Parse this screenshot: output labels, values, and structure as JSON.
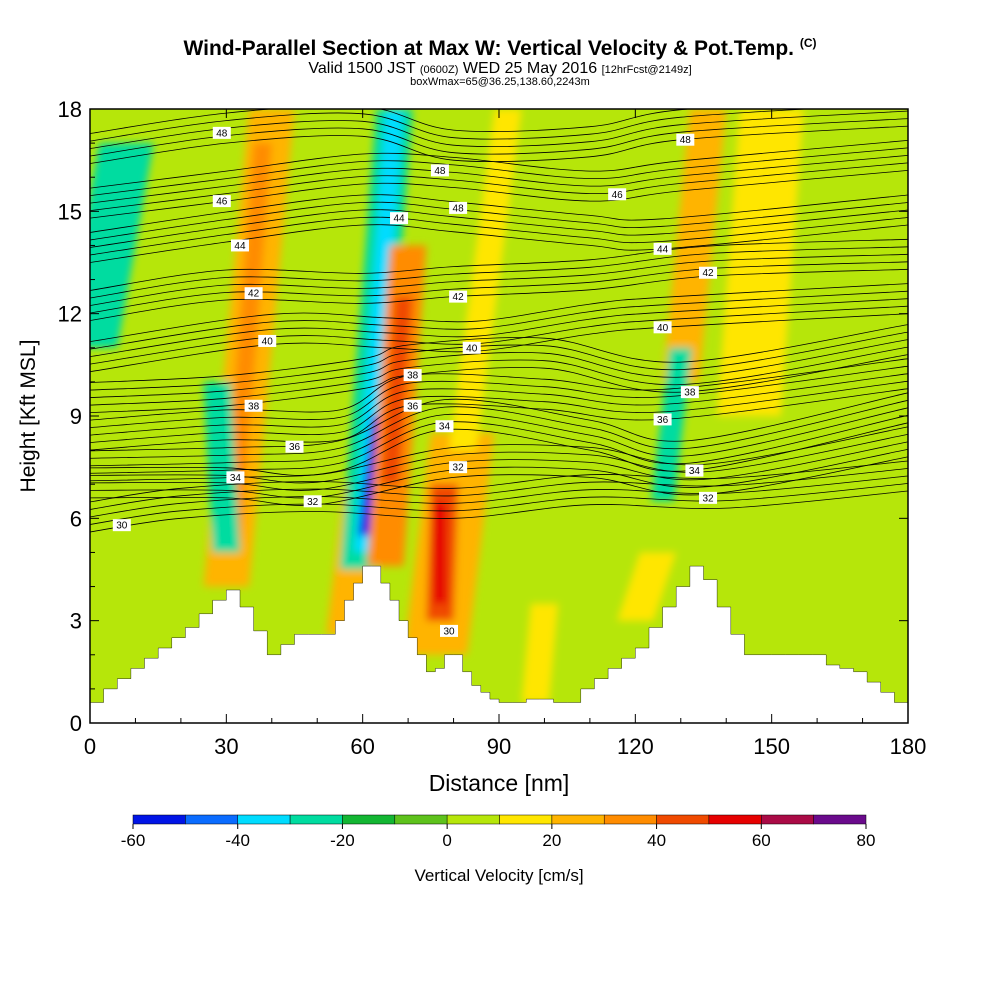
{
  "title": {
    "main": "Wind-Parallel Section at Max W: Vertical Velocity & Pot.Temp.",
    "copyright": "(C)",
    "valid_pre": "Valid 1500 JST",
    "valid_utc": "(0600Z)",
    "valid_date": "WED 25 May 2016",
    "forecast": "[12hrFcst@2149z]",
    "box": "boxWmax=65@36.25,138.60,2243m"
  },
  "chart_data": {
    "type": "heatmap",
    "xlabel": "Distance [nm]",
    "ylabel": "Height [Kft MSL]",
    "xlim": [
      0,
      180
    ],
    "ylim": [
      0,
      18
    ],
    "xticks": [
      0,
      30,
      60,
      90,
      120,
      150,
      180
    ],
    "yticks": [
      0,
      3,
      6,
      9,
      12,
      15,
      18
    ],
    "colorbar": {
      "label": "Vertical Velocity [cm/s]",
      "ticks": [
        -60,
        -40,
        -20,
        0,
        20,
        40,
        60,
        80
      ],
      "bins": [
        {
          "from": -60,
          "to": -50,
          "color": "#0014e6"
        },
        {
          "from": -50,
          "to": -40,
          "color": "#0a6cff"
        },
        {
          "from": -40,
          "to": -30,
          "color": "#00dcff"
        },
        {
          "from": -30,
          "to": -20,
          "color": "#00dca0"
        },
        {
          "from": -20,
          "to": -10,
          "color": "#13b633"
        },
        {
          "from": -10,
          "to": 0,
          "color": "#5ec21c"
        },
        {
          "from": 0,
          "to": 10,
          "color": "#b6e60a"
        },
        {
          "from": 10,
          "to": 20,
          "color": "#ffe600"
        },
        {
          "from": 20,
          "to": 30,
          "color": "#ffb400"
        },
        {
          "from": 30,
          "to": 40,
          "color": "#ff8c00"
        },
        {
          "from": 40,
          "to": 50,
          "color": "#f04a00"
        },
        {
          "from": 50,
          "to": 60,
          "color": "#e60000"
        },
        {
          "from": 60,
          "to": 70,
          "color": "#aa0a46"
        },
        {
          "from": 70,
          "to": 80,
          "color": "#6a0a8c"
        }
      ]
    },
    "terrain": {
      "x": [
        0,
        3,
        6,
        9,
        12,
        15,
        18,
        21,
        24,
        27,
        30,
        33,
        36,
        39,
        42,
        45,
        48,
        51,
        54,
        56,
        58,
        60,
        62,
        64,
        66,
        68,
        70,
        72,
        74,
        76,
        78,
        80,
        82,
        84,
        86,
        88,
        90,
        93,
        96,
        99,
        102,
        105,
        108,
        111,
        114,
        117,
        120,
        123,
        126,
        129,
        132,
        135,
        138,
        141,
        144,
        147,
        150,
        153,
        156,
        159,
        162,
        165,
        168,
        171,
        174,
        177,
        180
      ],
      "height_kft": [
        0.6,
        1.0,
        1.3,
        1.6,
        1.9,
        2.2,
        2.5,
        2.8,
        3.2,
        3.6,
        3.9,
        3.4,
        2.7,
        2.0,
        2.3,
        2.6,
        2.6,
        2.6,
        3.0,
        3.6,
        4.1,
        4.6,
        4.6,
        4.1,
        3.6,
        3.0,
        2.5,
        2.0,
        1.5,
        1.6,
        2.0,
        2.0,
        1.5,
        1.1,
        0.9,
        0.7,
        0.6,
        0.6,
        0.7,
        0.7,
        0.6,
        0.6,
        1.0,
        1.3,
        1.6,
        1.9,
        2.2,
        2.8,
        3.4,
        4.0,
        4.6,
        4.2,
        3.4,
        2.6,
        2.0,
        2.0,
        2.0,
        2.0,
        2.0,
        2.0,
        1.7,
        1.6,
        1.5,
        1.2,
        0.9,
        0.6,
        0.4
      ]
    },
    "vertical_velocity_bands": [
      {
        "x_base": 30,
        "x_top": 40,
        "y_base": 4,
        "y_top": 18,
        "width_nm": 10,
        "value": 20
      },
      {
        "x_base": 31,
        "x_top": 38,
        "y_base": 5,
        "y_top": 17,
        "width_nm": 4,
        "value": 30
      },
      {
        "x_base": 30,
        "x_top": 28,
        "y_base": 5,
        "y_top": 10,
        "width_nm": 6,
        "value": -25
      },
      {
        "x_base": 56,
        "x_top": 60,
        "y_base": 2.6,
        "y_top": 7,
        "width_nm": 8,
        "value": 25
      },
      {
        "x_base": 59,
        "x_top": 67,
        "y_base": 4.5,
        "y_top": 18,
        "width_nm": 8,
        "value": -25
      },
      {
        "x_base": 60,
        "x_top": 67,
        "y_base": 5,
        "y_top": 18,
        "width_nm": 4,
        "value": -35
      },
      {
        "x_base": 61,
        "x_top": 64,
        "y_base": 5.5,
        "y_top": 9,
        "width_nm": 4,
        "value": -55
      },
      {
        "x_base": 65,
        "x_top": 70,
        "y_base": 4.6,
        "y_top": 14,
        "width_nm": 8,
        "value": 35
      },
      {
        "x_base": 66,
        "x_top": 69,
        "y_base": 7,
        "y_top": 12.5,
        "width_nm": 4,
        "value": 48
      },
      {
        "x_base": 76,
        "x_top": 82,
        "y_base": 2,
        "y_top": 8.5,
        "width_nm": 14,
        "value": 25
      },
      {
        "x_base": 77,
        "x_top": 78,
        "y_base": 3,
        "y_top": 7,
        "width_nm": 6,
        "value": 45
      },
      {
        "x_base": 77,
        "x_top": 77,
        "y_base": 3.5,
        "y_top": 6.5,
        "width_nm": 3,
        "value": 58
      },
      {
        "x_base": 82,
        "x_top": 92,
        "y_base": 8,
        "y_top": 18,
        "width_nm": 6,
        "value": 18
      },
      {
        "x_base": 130,
        "x_top": 136,
        "y_base": 10,
        "y_top": 18,
        "width_nm": 8,
        "value": 22
      },
      {
        "x_base": 126,
        "x_top": 130,
        "y_base": 6.5,
        "y_top": 11,
        "width_nm": 5,
        "value": -25
      },
      {
        "x_base": 145,
        "x_top": 150,
        "y_base": 9,
        "y_top": 18,
        "width_nm": 14,
        "value": 15
      },
      {
        "x_base": 0,
        "x_top": 8,
        "y_base": 11,
        "y_top": 17,
        "width_nm": 12,
        "value": -25
      },
      {
        "x_base": 98,
        "x_top": 100,
        "y_base": 0.6,
        "y_top": 3.5,
        "width_nm": 6,
        "value": 15
      },
      {
        "x_base": 120,
        "x_top": 125,
        "y_base": 3,
        "y_top": 5,
        "width_nm": 8,
        "value": 15
      }
    ],
    "isentropes": [
      {
        "label": "30",
        "value": 30,
        "x": [
          0,
          20,
          50,
          80,
          110,
          140,
          180
        ],
        "y": [
          5.6,
          6.0,
          6.2,
          6.0,
          6.4,
          6.3,
          6.8
        ],
        "labels_at": [
          {
            "x": 7,
            "y": 5.8
          },
          {
            "x": 79,
            "y": 2.7
          }
        ]
      },
      {
        "label": "32",
        "value": 32,
        "x": [
          0,
          30,
          50,
          80,
          110,
          135,
          180
        ],
        "y": [
          6.6,
          6.6,
          6.4,
          7.2,
          7.2,
          6.7,
          7.8
        ],
        "labels_at": [
          {
            "x": 49,
            "y": 6.5
          },
          {
            "x": 81,
            "y": 7.5
          },
          {
            "x": 136,
            "y": 6.6
          }
        ]
      },
      {
        "label": "34",
        "value": 34,
        "x": [
          0,
          32,
          55,
          78,
          110,
          132,
          180
        ],
        "y": [
          7.1,
          7.2,
          7.4,
          8.6,
          8.0,
          7.4,
          8.8
        ],
        "labels_at": [
          {
            "x": 32,
            "y": 7.2
          },
          {
            "x": 78,
            "y": 8.7
          },
          {
            "x": 133,
            "y": 7.4
          }
        ]
      },
      {
        "label": "36",
        "value": 36,
        "x": [
          0,
          30,
          55,
          70,
          100,
          126,
          180
        ],
        "y": [
          8.0,
          8.3,
          8.3,
          9.3,
          9.2,
          8.9,
          9.8
        ],
        "labels_at": [
          {
            "x": 45,
            "y": 8.1
          },
          {
            "x": 71,
            "y": 9.3
          },
          {
            "x": 126,
            "y": 8.9
          }
        ]
      },
      {
        "label": "38",
        "value": 38,
        "x": [
          0,
          30,
          60,
          70,
          100,
          130,
          180
        ],
        "y": [
          9.1,
          9.3,
          9.8,
          10.2,
          10.4,
          9.7,
          10.8
        ],
        "labels_at": [
          {
            "x": 36,
            "y": 9.3
          },
          {
            "x": 71,
            "y": 10.2
          },
          {
            "x": 132,
            "y": 9.7
          }
        ]
      },
      {
        "label": "40",
        "value": 40,
        "x": [
          0,
          40,
          65,
          85,
          110,
          126,
          180
        ],
        "y": [
          10.3,
          11.1,
          11.0,
          10.9,
          11.4,
          11.6,
          12.0
        ],
        "labels_at": [
          {
            "x": 39,
            "y": 11.2
          },
          {
            "x": 84,
            "y": 11.0
          },
          {
            "x": 126,
            "y": 11.6
          }
        ]
      },
      {
        "label": "42",
        "value": 42,
        "x": [
          0,
          30,
          60,
          80,
          110,
          136,
          180
        ],
        "y": [
          11.8,
          12.4,
          12.3,
          12.5,
          12.7,
          13.1,
          13.3
        ],
        "labels_at": [
          {
            "x": 36,
            "y": 12.6
          },
          {
            "x": 81,
            "y": 12.5
          },
          {
            "x": 136,
            "y": 13.2
          }
        ]
      },
      {
        "label": "44",
        "value": 44,
        "x": [
          0,
          30,
          60,
          80,
          110,
          126,
          180
        ],
        "y": [
          13.5,
          14.1,
          14.6,
          14.4,
          14.0,
          13.9,
          14.6
        ],
        "labels_at": [
          {
            "x": 33,
            "y": 14.0
          },
          {
            "x": 68,
            "y": 14.8
          },
          {
            "x": 126,
            "y": 13.9
          }
        ]
      },
      {
        "label": "46",
        "value": 46,
        "x": [
          0,
          30,
          60,
          80,
          110,
          130,
          180
        ],
        "y": [
          14.8,
          15.3,
          15.8,
          15.7,
          15.3,
          15.6,
          16.2
        ],
        "labels_at": [
          {
            "x": 29,
            "y": 15.3
          },
          {
            "x": 116,
            "y": 15.5
          }
        ]
      },
      {
        "label": "48",
        "value": 48,
        "x": [
          0,
          30,
          60,
          80,
          110,
          130,
          180
        ],
        "y": [
          16.4,
          17.0,
          17.2,
          16.5,
          16.6,
          17.1,
          17.5
        ],
        "labels_at": [
          {
            "x": 29,
            "y": 17.3
          },
          {
            "x": 77,
            "y": 16.2
          },
          {
            "x": 81,
            "y": 15.1
          },
          {
            "x": 131,
            "y": 17.1
          }
        ]
      }
    ]
  }
}
